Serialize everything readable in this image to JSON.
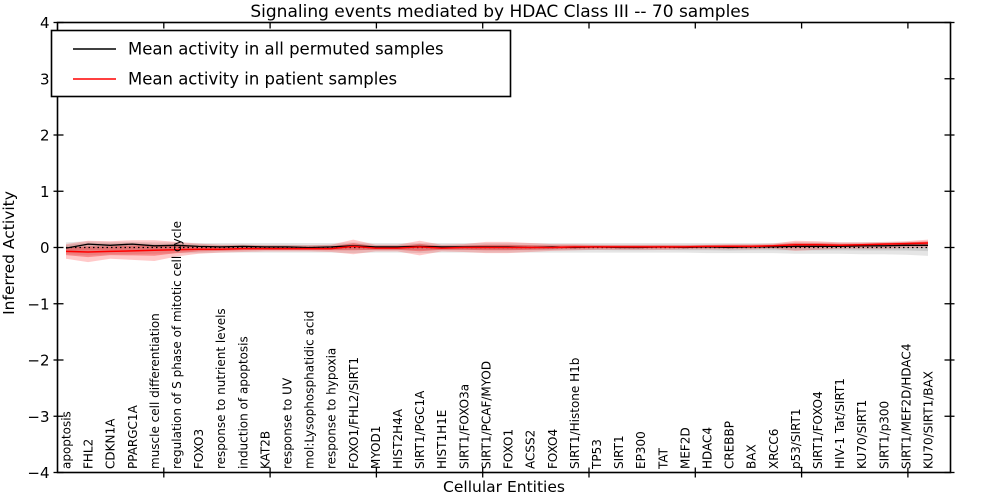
{
  "title": "Signaling events mediated by HDAC Class III -- 70 samples",
  "axes": {
    "ylabel": "Inferred Activity",
    "xlabel": "Cellular Entities",
    "ytick_labels": [
      "4",
      "3",
      "2",
      "1",
      "0",
      "−1",
      "−2",
      "−3",
      "−4"
    ],
    "ytick_values": [
      4,
      3,
      2,
      1,
      0,
      -1,
      -2,
      -3,
      -4
    ]
  },
  "legend": {
    "entries": [
      {
        "label": "Mean activity in all permuted samples",
        "color": "#000000"
      },
      {
        "label": "Mean activity in patient samples",
        "color": "#ff0000"
      }
    ]
  },
  "colors": {
    "permuted_line": "#000000",
    "patient_line": "#ff0000",
    "permuted_band": "rgba(0,0,0,0.10)",
    "patient_band_outer": "rgba(255,40,40,0.25)",
    "patient_band_inner": "rgba(240,20,20,0.35)",
    "zero_line": "#000000",
    "frame": "#000000"
  },
  "chart_data": {
    "type": "line",
    "title": "Signaling events mediated by HDAC Class III -- 70 samples",
    "xlabel": "Cellular Entities",
    "ylabel": "Inferred Activity",
    "ylim": [
      -4,
      4
    ],
    "grid": false,
    "legend_position": "upper left",
    "categories": [
      "apoptosis",
      "FHL2",
      "CDKN1A",
      "PPARGC1A",
      "muscle cell differentiation",
      "regulation of S phase of mitotic cell cycle",
      "FOXO3",
      "response to nutrient levels",
      "induction of apoptosis",
      "KAT2B",
      "response to UV",
      "mol:Lysophosphatidic acid",
      "response to hypoxia",
      "FOXO1/FHL2/SIRT1",
      "MYOD1",
      "HIST2H4A",
      "SIRT1/PGC1A",
      "HIST1H1E",
      "SIRT1/FOXO3a",
      "SIRT1/PCAF/MYOD",
      "FOXO1",
      "ACSS2",
      "FOXO4",
      "SIRT1/Histone H1b",
      "TP53",
      "SIRT1",
      "EP300",
      "TAT",
      "MEF2D",
      "HDAC4",
      "CREBBP",
      "BAX",
      "XRCC6",
      "p53/SIRT1",
      "SIRT1/FOXO4",
      "HIV-1 Tat/SIRT1",
      "KU70/SIRT1",
      "SIRT1/p300",
      "SIRT1/MEF2D/HDAC4",
      "KU70/SIRT1/BAX"
    ],
    "series": [
      {
        "name": "Mean activity in all permuted samples",
        "color": "#000000",
        "values": [
          -0.01,
          0.06,
          0.04,
          0.06,
          0.03,
          0.04,
          0.02,
          0.01,
          0.02,
          0.01,
          0.01,
          0.0,
          0.01,
          0.03,
          0.01,
          0.01,
          0.02,
          0.01,
          0.01,
          0.01,
          0.01,
          0.0,
          0.01,
          0.0,
          0.01,
          0.0,
          0.0,
          0.01,
          0.0,
          0.01,
          0.0,
          0.01,
          0.01,
          0.02,
          0.02,
          0.02,
          0.03,
          0.03,
          0.04,
          0.04
        ]
      },
      {
        "name": "Mean activity in patient samples",
        "color": "#ff0000",
        "values": [
          -0.07,
          -0.08,
          -0.07,
          -0.06,
          -0.05,
          -0.04,
          -0.03,
          -0.03,
          -0.02,
          -0.02,
          -0.02,
          -0.02,
          -0.02,
          0.02,
          -0.01,
          -0.01,
          0.01,
          -0.01,
          0.0,
          0.0,
          0.0,
          0.0,
          0.0,
          0.01,
          0.01,
          0.01,
          0.01,
          0.01,
          0.01,
          0.02,
          0.02,
          0.02,
          0.03,
          0.05,
          0.05,
          0.04,
          0.05,
          0.06,
          0.07,
          0.08
        ]
      }
    ],
    "bands": [
      {
        "name": "permuted-samples-range",
        "series": 0,
        "upper": [
          0.09,
          0.11,
          0.1,
          0.1,
          0.09,
          0.09,
          0.08,
          0.08,
          0.08,
          0.08,
          0.08,
          0.08,
          0.08,
          0.09,
          0.08,
          0.08,
          0.08,
          0.08,
          0.08,
          0.08,
          0.08,
          0.08,
          0.08,
          0.08,
          0.08,
          0.08,
          0.08,
          0.08,
          0.08,
          0.08,
          0.08,
          0.08,
          0.08,
          0.09,
          0.09,
          0.09,
          0.09,
          0.09,
          0.1,
          0.1
        ],
        "lower": [
          -0.12,
          -0.14,
          -0.12,
          -0.12,
          -0.11,
          -0.1,
          -0.1,
          -0.09,
          -0.09,
          -0.09,
          -0.09,
          -0.09,
          -0.09,
          -0.1,
          -0.09,
          -0.09,
          -0.1,
          -0.09,
          -0.09,
          -0.09,
          -0.09,
          -0.09,
          -0.09,
          -0.09,
          -0.09,
          -0.09,
          -0.09,
          -0.09,
          -0.09,
          -0.1,
          -0.1,
          -0.1,
          -0.1,
          -0.11,
          -0.11,
          -0.11,
          -0.12,
          -0.12,
          -0.13,
          -0.15
        ]
      },
      {
        "name": "patient-samples-range",
        "series": 1,
        "upper": [
          0.06,
          0.12,
          0.11,
          0.13,
          0.13,
          0.1,
          0.07,
          0.05,
          0.05,
          0.04,
          0.04,
          0.04,
          0.05,
          0.14,
          0.05,
          0.05,
          0.12,
          0.05,
          0.06,
          0.1,
          0.1,
          0.08,
          0.06,
          0.06,
          0.05,
          0.05,
          0.05,
          0.05,
          0.05,
          0.05,
          0.06,
          0.06,
          0.07,
          0.12,
          0.11,
          0.09,
          0.09,
          0.1,
          0.11,
          0.14
        ],
        "lower": [
          -0.2,
          -0.26,
          -0.2,
          -0.22,
          -0.24,
          -0.16,
          -0.11,
          -0.09,
          -0.08,
          -0.07,
          -0.07,
          -0.07,
          -0.08,
          -0.12,
          -0.07,
          -0.07,
          -0.14,
          -0.07,
          -0.08,
          -0.1,
          -0.1,
          -0.08,
          -0.06,
          -0.05,
          -0.04,
          -0.04,
          -0.04,
          -0.04,
          -0.03,
          -0.03,
          -0.03,
          -0.03,
          -0.02,
          -0.06,
          -0.04,
          -0.02,
          -0.02,
          -0.02,
          -0.01,
          0.0
        ]
      }
    ],
    "zero_line": {
      "y": 0,
      "style": "dotted",
      "color": "#000000"
    }
  }
}
